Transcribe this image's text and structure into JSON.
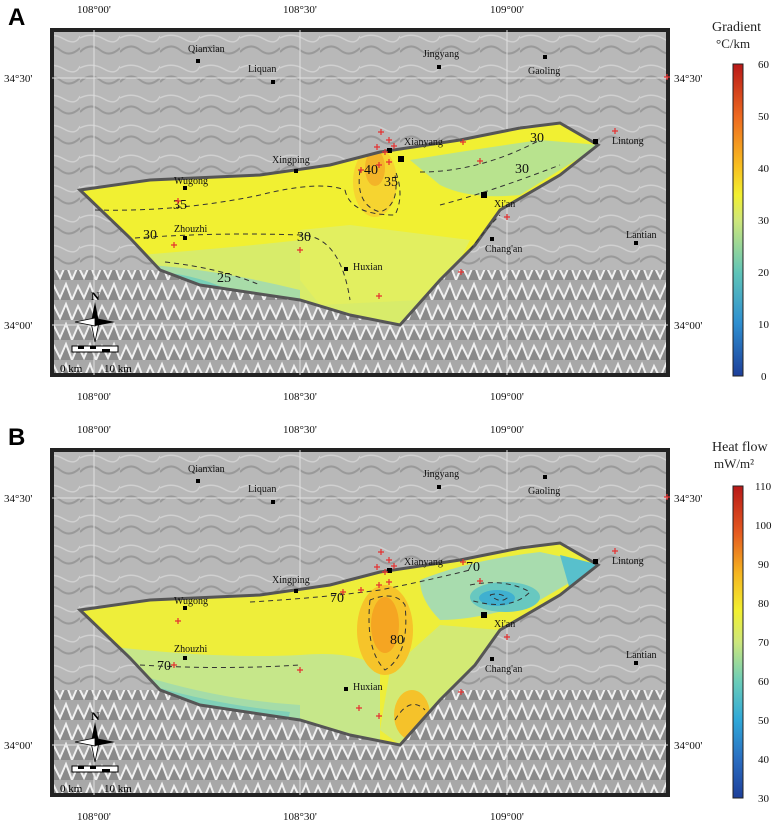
{
  "panels": [
    {
      "letter": "A",
      "colorbar": {
        "title": "Gradient",
        "unit": "°C/km",
        "ticks": [
          "60",
          "50",
          "40",
          "30",
          "20",
          "10",
          "0"
        ],
        "min": 0,
        "max": 60
      },
      "axes": {
        "top_lon": [
          "108°00'",
          "108°30'",
          "109°00'"
        ],
        "bottom_lon": [
          "108°00'",
          "108°30'",
          "109°00'"
        ],
        "left_lat": [
          "34°30'",
          "34°00'"
        ],
        "right_lat": [
          "34°30'",
          "34°00'"
        ]
      },
      "contour_labels": [
        "35",
        "30",
        "30",
        "25",
        "40",
        "35",
        "30",
        "30"
      ],
      "scale_bar": {
        "start": "0 km",
        "end": "10 km"
      }
    },
    {
      "letter": "B",
      "colorbar": {
        "title": "Heat flow",
        "unit": "mW/m²",
        "ticks": [
          "110",
          "100",
          "90",
          "80",
          "70",
          "60",
          "50",
          "40",
          "30"
        ],
        "min": 30,
        "max": 110
      },
      "axes": {
        "top_lon": [
          "108°00'",
          "108°30'",
          "109°00'"
        ],
        "bottom_lon": [
          "108°00'",
          "108°30'",
          "109°00'"
        ],
        "left_lat": [
          "34°30'",
          "34°00'"
        ],
        "right_lat": [
          "34°30'",
          "34°00'"
        ]
      },
      "contour_labels": [
        "70",
        "70",
        "80",
        "70"
      ],
      "scale_bar": {
        "start": "0 km",
        "end": "10 km"
      }
    }
  ],
  "places": [
    "Qianxian",
    "Liquan",
    "Jingyang",
    "Gaoling",
    "Xianyang",
    "Lintong",
    "Xingping",
    "Wugong",
    "Xi'an",
    "Zhouzhi",
    "Chang'an",
    "Huxian",
    "Lantian"
  ],
  "north_label": "N",
  "colors": {
    "map_border": "#222222",
    "basin_outline": "#555555",
    "station": "#e53030"
  }
}
